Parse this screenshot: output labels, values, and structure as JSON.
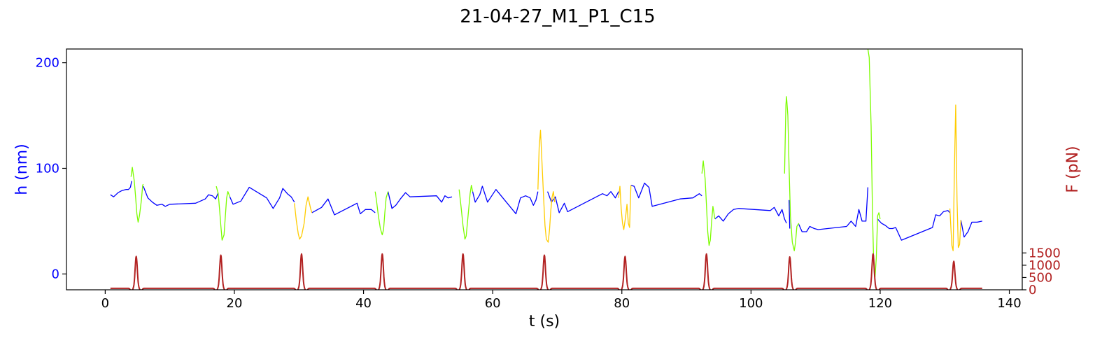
{
  "chart_data": {
    "type": "line",
    "title": "21-04-27_M1_P1_C15",
    "xlabel": "t (s)",
    "ylabel_left": "h (nm)",
    "ylabel_right": "F (pN)",
    "xlim": [
      -6,
      142
    ],
    "ylim_left": [
      -15,
      213
    ],
    "ylim_right": [
      0,
      9800
    ],
    "x_ticks": [
      0,
      20,
      40,
      60,
      80,
      100,
      120,
      140
    ],
    "y_ticks_left": [
      0,
      100,
      200
    ],
    "y_ticks_right": [
      0,
      500,
      1000,
      1500
    ],
    "colors": {
      "baseline": "#0000ff",
      "approach": "#7cfc00",
      "retract": "#ffcc00",
      "force": "#b22222",
      "axis": "#000000"
    },
    "series": [
      {
        "name": "",
        "color": "#0000ff",
        "axis": "left",
        "segments": [
          [
            [
              0.8,
              75
            ],
            [
              1.3,
              73
            ],
            [
              2,
              77
            ],
            [
              2.6,
              79
            ],
            [
              3.2,
              80
            ],
            [
              3.6,
              80
            ],
            [
              3.9,
              82
            ],
            [
              4.1,
              88
            ]
          ],
          [
            [
              5.9,
              83
            ],
            [
              6.6,
              72
            ],
            [
              7.3,
              68
            ],
            [
              8,
              65
            ],
            [
              8.8,
              66
            ],
            [
              9.3,
              64
            ],
            [
              10,
              66
            ],
            [
              14,
              67
            ],
            [
              15.5,
              71
            ],
            [
              16,
              75
            ],
            [
              16.6,
              74
            ],
            [
              17.1,
              71
            ],
            [
              17.5,
              77
            ]
          ],
          [
            [
              19.3,
              73
            ],
            [
              19.8,
              66
            ],
            [
              21,
              69
            ],
            [
              22.3,
              82
            ],
            [
              25,
              72
            ],
            [
              26,
              62
            ],
            [
              27,
              72
            ],
            [
              27.5,
              81
            ],
            [
              28.2,
              76
            ],
            [
              28.8,
              73
            ],
            [
              29.3,
              68
            ]
          ],
          [
            [
              32,
              58
            ],
            [
              33.5,
              63
            ],
            [
              34.5,
              71
            ],
            [
              35.5,
              56
            ],
            [
              39,
              67
            ],
            [
              39.5,
              57
            ],
            [
              40.3,
              61
            ],
            [
              41.2,
              61
            ],
            [
              41.8,
              58
            ]
          ],
          [
            [
              43.8,
              78
            ],
            [
              44.4,
              62
            ],
            [
              45,
              65
            ],
            [
              45.7,
              71
            ],
            [
              46.5,
              77
            ],
            [
              47.2,
              73
            ],
            [
              51.3,
              74
            ],
            [
              52.1,
              68
            ],
            [
              52.6,
              74
            ],
            [
              53.1,
              72
            ],
            [
              53.7,
              73
            ]
          ],
          [
            [
              56.9,
              78
            ],
            [
              57.3,
              68
            ],
            [
              58,
              75
            ],
            [
              58.4,
              83
            ],
            [
              59.2,
              68
            ],
            [
              60.5,
              80
            ],
            [
              63.6,
              57
            ],
            [
              64.3,
              72
            ],
            [
              65.1,
              74
            ],
            [
              65.8,
              72
            ],
            [
              66.3,
              65
            ],
            [
              66.7,
              70
            ],
            [
              67,
              78
            ]
          ],
          [
            [
              68.5,
              78
            ],
            [
              69.1,
              68
            ],
            [
              69.7,
              73
            ],
            [
              70.3,
              58
            ],
            [
              71.1,
              67
            ],
            [
              71.6,
              59
            ],
            [
              77,
              76
            ],
            [
              77.7,
              74
            ],
            [
              78.3,
              78
            ],
            [
              79,
              72
            ],
            [
              79.5,
              78
            ]
          ],
          [
            [
              81.4,
              84
            ],
            [
              81.9,
              83
            ],
            [
              82.6,
              72
            ],
            [
              83.5,
              86
            ],
            [
              84.2,
              82
            ],
            [
              84.7,
              64
            ],
            [
              89,
              71
            ],
            [
              91,
              72
            ],
            [
              92,
              76
            ],
            [
              92.4,
              74
            ]
          ],
          [
            [
              94.4,
              52
            ],
            [
              95,
              55
            ],
            [
              95.7,
              50
            ],
            [
              96.5,
              57
            ],
            [
              97.3,
              61
            ],
            [
              98.1,
              62
            ],
            [
              103,
              60
            ],
            [
              103.6,
              63
            ],
            [
              104.3,
              55
            ],
            [
              104.8,
              61
            ],
            [
              105.2,
              52
            ],
            [
              105.5,
              48
            ]
          ],
          [
            [
              105.9,
              70
            ],
            [
              106,
              43
            ]
          ],
          [
            [
              107.4,
              47
            ],
            [
              107.9,
              40
            ],
            [
              108.6,
              40
            ],
            [
              109.1,
              45
            ],
            [
              109.8,
              43
            ],
            [
              110.4,
              42
            ],
            [
              114.8,
              45
            ],
            [
              115.5,
              50
            ],
            [
              116.2,
              45
            ],
            [
              116.7,
              61
            ],
            [
              117.2,
              50
            ],
            [
              117.8,
              50
            ],
            [
              118.1,
              82
            ]
          ],
          [
            [
              119.6,
              52
            ],
            [
              120.2,
              48
            ],
            [
              120.8,
              46
            ],
            [
              121.4,
              43
            ],
            [
              121.9,
              43
            ],
            [
              122.4,
              44
            ],
            [
              123.3,
              32
            ],
            [
              128.1,
              44
            ],
            [
              128.6,
              56
            ],
            [
              129.2,
              55
            ],
            [
              129.8,
              59
            ],
            [
              130.5,
              60
            ],
            [
              130.8,
              58
            ]
          ],
          [
            [
              132.5,
              51
            ],
            [
              133,
              35
            ],
            [
              133.6,
              40
            ],
            [
              134.2,
              49
            ],
            [
              135,
              49
            ],
            [
              135.8,
              50
            ]
          ]
        ]
      },
      {
        "name": "",
        "color": "#7cfc00",
        "axis": "left",
        "segments": [
          [
            [
              4.0,
              92
            ],
            [
              4.2,
              101
            ],
            [
              4.5,
              88
            ],
            [
              4.7,
              73
            ],
            [
              4.9,
              57
            ],
            [
              5.1,
              49
            ],
            [
              5.3,
              55
            ],
            [
              5.6,
              70
            ],
            [
              5.8,
              84
            ],
            [
              5.9,
              85
            ]
          ],
          [
            [
              17.2,
              83
            ],
            [
              17.5,
              76
            ],
            [
              17.7,
              62
            ],
            [
              17.9,
              46
            ],
            [
              18.1,
              32
            ],
            [
              18.4,
              37
            ],
            [
              18.6,
              55
            ],
            [
              18.8,
              72
            ],
            [
              19.0,
              78
            ],
            [
              19.3,
              73
            ]
          ],
          [
            [
              41.8,
              78
            ],
            [
              42.0,
              70
            ],
            [
              42.3,
              55
            ],
            [
              42.6,
              43
            ],
            [
              42.9,
              37
            ],
            [
              43.1,
              42
            ],
            [
              43.3,
              58
            ],
            [
              43.5,
              72
            ],
            [
              43.8,
              78
            ]
          ],
          [
            [
              54.8,
              80
            ],
            [
              55.1,
              64
            ],
            [
              55.4,
              46
            ],
            [
              55.7,
              33
            ],
            [
              55.9,
              36
            ],
            [
              56.2,
              56
            ],
            [
              56.5,
              76
            ],
            [
              56.7,
              84
            ],
            [
              56.9,
              78
            ]
          ],
          [
            [
              92.4,
              95
            ],
            [
              92.6,
              107
            ],
            [
              92.9,
              90
            ],
            [
              93.1,
              65
            ],
            [
              93.3,
              40
            ],
            [
              93.5,
              27
            ],
            [
              93.7,
              32
            ],
            [
              93.9,
              50
            ],
            [
              94.1,
              64
            ],
            [
              94.4,
              52
            ]
          ],
          [
            [
              105.2,
              95
            ],
            [
              105.4,
              160
            ],
            [
              105.5,
              168
            ],
            [
              105.7,
              150
            ],
            [
              105.9,
              100
            ],
            [
              106.1,
              55
            ],
            [
              106.4,
              30
            ],
            [
              106.7,
              22
            ],
            [
              106.9,
              30
            ],
            [
              107.1,
              45
            ],
            [
              107.4,
              48
            ]
          ],
          [
            [
              118.1,
              213
            ],
            [
              118.3,
              205
            ],
            [
              118.6,
              140
            ],
            [
              118.8,
              60
            ],
            [
              119.0,
              10
            ],
            [
              119.2,
              -3
            ],
            [
              119.4,
              15
            ],
            [
              119.6,
              55
            ],
            [
              119.8,
              58
            ],
            [
              120,
              52
            ]
          ]
        ]
      },
      {
        "name": "",
        "color": "#ffcc00",
        "axis": "left",
        "segments": [
          [
            [
              29.3,
              67
            ],
            [
              29.6,
              50
            ],
            [
              29.9,
              38
            ],
            [
              30.1,
              33
            ],
            [
              30.4,
              36
            ],
            [
              30.8,
              48
            ],
            [
              31.1,
              65
            ],
            [
              31.4,
              73
            ],
            [
              31.8,
              62
            ],
            [
              32.0,
              58
            ]
          ],
          [
            [
              67.0,
              80
            ],
            [
              67.2,
              120
            ],
            [
              67.4,
              136
            ],
            [
              67.6,
              110
            ],
            [
              67.9,
              70
            ],
            [
              68.1,
              46
            ],
            [
              68.3,
              33
            ],
            [
              68.6,
              30
            ],
            [
              68.8,
              42
            ],
            [
              69.0,
              60
            ],
            [
              69.2,
              73
            ],
            [
              69.4,
              78
            ],
            [
              69.6,
              68
            ]
          ],
          [
            [
              79.5,
              72
            ],
            [
              79.7,
              83
            ],
            [
              79.9,
              62
            ],
            [
              80.1,
              48
            ],
            [
              80.3,
              42
            ],
            [
              80.6,
              55
            ],
            [
              80.8,
              66
            ],
            [
              81.0,
              48
            ],
            [
              81.2,
              44
            ],
            [
              81.4,
              84
            ]
          ],
          [
            [
              130.8,
              62
            ],
            [
              130.9,
              50
            ],
            [
              131.1,
              27
            ],
            [
              131.3,
              22
            ],
            [
              131.5,
              100
            ],
            [
              131.7,
              160
            ],
            [
              131.9,
              70
            ],
            [
              132.1,
              25
            ],
            [
              132.3,
              28
            ],
            [
              132.5,
              51
            ]
          ]
        ]
      },
      {
        "name": "",
        "color": "#b22222",
        "axis": "right",
        "pulses": {
          "baseline": 60,
          "width_s": 0.65,
          "peaks": [
            {
              "t": 4.8,
              "amplitude": 1300
            },
            {
              "t": 17.9,
              "amplitude": 1350
            },
            {
              "t": 30.4,
              "amplitude": 1400
            },
            {
              "t": 42.9,
              "amplitude": 1400
            },
            {
              "t": 55.4,
              "amplitude": 1400
            },
            {
              "t": 68.0,
              "amplitude": 1350
            },
            {
              "t": 80.5,
              "amplitude": 1300
            },
            {
              "t": 93.1,
              "amplitude": 1400
            },
            {
              "t": 106.0,
              "amplitude": 1280
            },
            {
              "t": 118.9,
              "amplitude": 1400
            },
            {
              "t": 131.4,
              "amplitude": 1100
            }
          ],
          "x_start": 0.8,
          "x_end": 135.8
        }
      }
    ]
  }
}
